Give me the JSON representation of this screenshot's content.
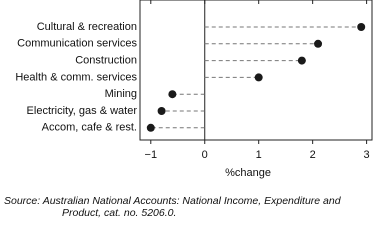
{
  "chart_data": {
    "type": "dot",
    "categories": [
      "Cultural & recreation",
      "Communication services",
      "Construction",
      "Health & comm. services",
      "Mining",
      "Electricity, gas & water",
      "Accom, cafe & rest."
    ],
    "values": [
      2.9,
      2.1,
      1.8,
      1.0,
      -0.6,
      -0.8,
      -1.0
    ],
    "color": "#1a1a1a",
    "xlabel": "%change",
    "xlim": [
      -1.2,
      3.1
    ],
    "xticks": [
      {
        "value": -1,
        "label": "−1"
      },
      0,
      1,
      2,
      3
    ],
    "source": [
      "Source: Australian National Accounts: National Income, Expenditure and",
      "Product, cat. no. 5206.0."
    ]
  }
}
